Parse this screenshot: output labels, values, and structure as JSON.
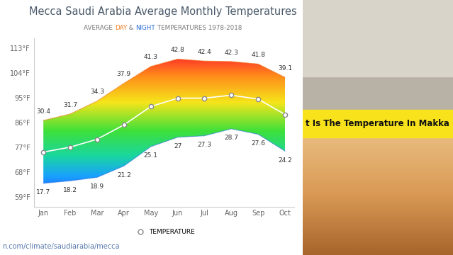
{
  "chart_data": {
    "type": "line",
    "title": "Mecca Saudi Arabia Average Monthly Temperatures",
    "subtitle": "AVERAGE DAY & NIGHT TEMPERATURES 1978-2018",
    "source": "n.com/climate/saudiarabia/mecca",
    "categories": [
      "Jan",
      "Feb",
      "Mar",
      "Apr",
      "May",
      "Jun",
      "Jul",
      "Aug",
      "Sep",
      "Oct"
    ],
    "series": [
      {
        "name": "DAY",
        "type": "area",
        "color": "#f07b1d",
        "values": [
          30.4,
          31.7,
          34.3,
          37.9,
          41.3,
          42.8,
          42.4,
          42.3,
          41.8,
          39.1
        ]
      },
      {
        "name": "NIGHT",
        "type": "area",
        "color": "#2a6fdb",
        "values": [
          17.7,
          18.2,
          18.9,
          21.2,
          25.1,
          27,
          27.3,
          28.7,
          27.6,
          24.2
        ]
      },
      {
        "name": "TEMPERATURE",
        "type": "line",
        "color": "#ffffff",
        "marker": "circle",
        "line_style": "solid",
        "values": [
          24.0,
          25.0,
          26.6,
          29.5,
          33.2,
          34.9,
          34.9,
          35.5,
          34.7,
          31.6
        ]
      }
    ],
    "data_labels": true,
    "ylim": [
      13,
      47
    ],
    "yticks": [
      {
        "value": 15,
        "label": "59°F"
      },
      {
        "value": 20,
        "label": "68°F"
      },
      {
        "value": 25,
        "label": "77°F"
      },
      {
        "value": 30,
        "label": "86°F"
      },
      {
        "value": 35,
        "label": "95°F"
      },
      {
        "value": 40,
        "label": "104°F"
      },
      {
        "value": 45,
        "label": "113°F"
      }
    ],
    "grid": false,
    "legend": "bottom"
  },
  "banner": {
    "text": "t Is The Temperature In Makka"
  }
}
